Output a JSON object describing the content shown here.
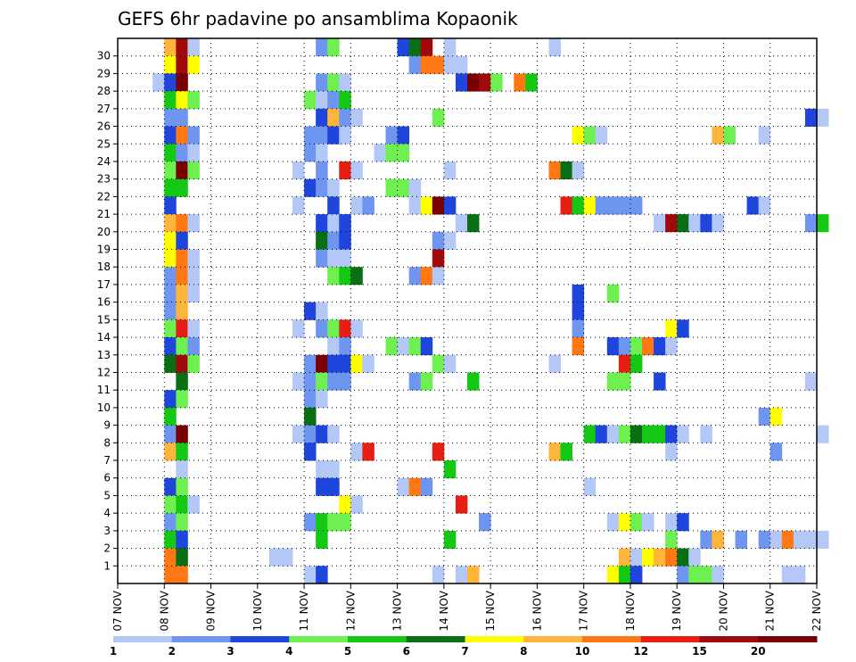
{
  "chart_data": {
    "type": "heatmap",
    "title": "GEFS 6hr padavine po ansamblima Kopaonik",
    "x_ticks": [
      "07 NOV",
      "08 NOV",
      "09 NOV",
      "10 NOV",
      "11 NOV",
      "12 NOV",
      "13 NOV",
      "14 NOV",
      "15 NOV",
      "16 NOV",
      "17 NOV",
      "18 NOV",
      "19 NOV",
      "20 NOV",
      "21 NOV",
      "22 NOV"
    ],
    "y_ticks": [
      "1",
      "2",
      "3",
      "4",
      "5",
      "6",
      "7",
      "8",
      "9",
      "10",
      "11",
      "12",
      "13",
      "14",
      "15",
      "16",
      "17",
      "18",
      "19",
      "20",
      "21",
      "22",
      "23",
      "24",
      "25",
      "26",
      "27",
      "28",
      "29",
      "30"
    ],
    "x_range": [
      "07 NOV",
      "22 NOV"
    ],
    "y_range": [
      0,
      30
    ],
    "step_hours": 6,
    "grid": true,
    "legend": {
      "placement": "bottom",
      "labels": [
        "1",
        "2",
        "3",
        "4",
        "5",
        "6",
        "7",
        "8",
        "10",
        "12",
        "15",
        "20"
      ],
      "colors": [
        "#b4c8f8",
        "#6e96f0",
        "#1e46dc",
        "#6ef050",
        "#14c814",
        "#0a6e14",
        "#ffff00",
        "#ffb43c",
        "#ff7814",
        "#e61e14",
        "#a00a0a",
        "#780000"
      ]
    },
    "cells_note": "Each cell = [member, day_offset_from_07NOV, color_index 0-11]",
    "cells": [
      [
        30,
        1.0,
        7
      ],
      [
        30,
        1.25,
        10
      ],
      [
        30,
        1.5,
        0
      ],
      [
        30,
        4.25,
        1
      ],
      [
        30,
        4.5,
        3
      ],
      [
        30,
        6.0,
        2
      ],
      [
        30,
        6.25,
        5
      ],
      [
        30,
        6.5,
        10
      ],
      [
        30,
        7.0,
        0
      ],
      [
        30,
        9.25,
        0
      ],
      [
        29,
        1.0,
        6
      ],
      [
        29,
        1.25,
        10
      ],
      [
        29,
        1.5,
        6
      ],
      [
        29,
        6.25,
        1
      ],
      [
        29,
        6.5,
        8
      ],
      [
        29,
        6.75,
        8
      ],
      [
        29,
        7.0,
        0
      ],
      [
        29,
        7.25,
        0
      ],
      [
        28,
        0.75,
        0
      ],
      [
        28,
        1.0,
        2
      ],
      [
        28,
        1.25,
        11
      ],
      [
        28,
        4.25,
        1
      ],
      [
        28,
        4.5,
        3
      ],
      [
        28,
        4.75,
        0
      ],
      [
        28,
        7.25,
        2
      ],
      [
        28,
        7.5,
        11
      ],
      [
        28,
        7.75,
        10
      ],
      [
        28,
        8.0,
        3
      ],
      [
        28,
        8.5,
        8
      ],
      [
        28,
        8.75,
        4
      ],
      [
        27,
        1.0,
        4
      ],
      [
        27,
        1.25,
        6
      ],
      [
        27,
        1.5,
        3
      ],
      [
        27,
        4.0,
        3
      ],
      [
        27,
        4.25,
        0
      ],
      [
        27,
        4.5,
        1
      ],
      [
        27,
        4.75,
        4
      ],
      [
        26,
        1.0,
        1
      ],
      [
        26,
        1.25,
        1
      ],
      [
        26,
        4.25,
        2
      ],
      [
        26,
        4.5,
        7
      ],
      [
        26,
        4.75,
        1
      ],
      [
        26,
        5.0,
        0
      ],
      [
        26,
        6.75,
        3
      ],
      [
        26,
        14.75,
        2
      ],
      [
        26,
        15.0,
        0
      ],
      [
        25,
        1.0,
        2
      ],
      [
        25,
        1.25,
        8
      ],
      [
        25,
        1.5,
        1
      ],
      [
        25,
        4.0,
        1
      ],
      [
        25,
        4.25,
        1
      ],
      [
        25,
        4.5,
        2
      ],
      [
        25,
        4.75,
        0
      ],
      [
        25,
        5.75,
        1
      ],
      [
        25,
        6.0,
        2
      ],
      [
        25,
        9.75,
        6
      ],
      [
        25,
        10.0,
        3
      ],
      [
        25,
        10.25,
        0
      ],
      [
        25,
        12.75,
        7
      ],
      [
        25,
        13.0,
        3
      ],
      [
        25,
        13.75,
        0
      ],
      [
        24,
        1.0,
        4
      ],
      [
        24,
        1.25,
        1
      ],
      [
        24,
        1.5,
        0
      ],
      [
        24,
        4.0,
        1
      ],
      [
        24,
        4.25,
        0
      ],
      [
        24,
        5.5,
        0
      ],
      [
        24,
        5.75,
        3
      ],
      [
        24,
        6.0,
        3
      ],
      [
        23,
        1.0,
        3
      ],
      [
        23,
        1.25,
        11
      ],
      [
        23,
        1.5,
        3
      ],
      [
        23,
        3.75,
        0
      ],
      [
        23,
        4.25,
        1
      ],
      [
        23,
        4.75,
        9
      ],
      [
        23,
        5.0,
        0
      ],
      [
        23,
        7.0,
        0
      ],
      [
        23,
        9.25,
        8
      ],
      [
        23,
        9.5,
        5
      ],
      [
        23,
        9.75,
        0
      ],
      [
        22,
        1.0,
        4
      ],
      [
        22,
        1.25,
        4
      ],
      [
        22,
        4.0,
        2
      ],
      [
        22,
        4.25,
        1
      ],
      [
        22,
        4.5,
        0
      ],
      [
        22,
        5.75,
        3
      ],
      [
        22,
        6.0,
        3
      ],
      [
        22,
        6.25,
        0
      ],
      [
        21,
        1.0,
        2
      ],
      [
        21,
        3.75,
        0
      ],
      [
        21,
        4.5,
        2
      ],
      [
        21,
        5.0,
        0
      ],
      [
        21,
        5.25,
        1
      ],
      [
        21,
        6.25,
        0
      ],
      [
        21,
        6.5,
        6
      ],
      [
        21,
        6.75,
        11
      ],
      [
        21,
        7.0,
        2
      ],
      [
        21,
        9.5,
        9
      ],
      [
        21,
        9.75,
        4
      ],
      [
        21,
        10.0,
        6
      ],
      [
        21,
        10.25,
        1
      ],
      [
        21,
        10.5,
        1
      ],
      [
        21,
        10.75,
        1
      ],
      [
        21,
        11.0,
        1
      ],
      [
        21,
        13.5,
        2
      ],
      [
        21,
        13.75,
        0
      ],
      [
        20,
        1.0,
        7
      ],
      [
        20,
        1.25,
        8
      ],
      [
        20,
        1.5,
        0
      ],
      [
        20,
        4.25,
        2
      ],
      [
        20,
        4.5,
        0
      ],
      [
        20,
        4.75,
        2
      ],
      [
        20,
        7.25,
        0
      ],
      [
        20,
        7.5,
        5
      ],
      [
        20,
        11.5,
        0
      ],
      [
        20,
        11.75,
        10
      ],
      [
        20,
        12.0,
        5
      ],
      [
        20,
        12.25,
        0
      ],
      [
        20,
        12.5,
        2
      ],
      [
        20,
        12.75,
        0
      ],
      [
        20,
        14.75,
        1
      ],
      [
        20,
        15.0,
        4
      ],
      [
        19,
        1.0,
        6
      ],
      [
        19,
        1.25,
        2
      ],
      [
        19,
        4.25,
        5
      ],
      [
        19,
        4.5,
        1
      ],
      [
        19,
        4.75,
        2
      ],
      [
        19,
        6.75,
        1
      ],
      [
        19,
        7.0,
        0
      ],
      [
        18,
        1.0,
        6
      ],
      [
        18,
        1.25,
        8
      ],
      [
        18,
        1.5,
        0
      ],
      [
        18,
        4.25,
        1
      ],
      [
        18,
        4.5,
        0
      ],
      [
        18,
        4.75,
        0
      ],
      [
        18,
        6.75,
        10
      ],
      [
        17,
        1.0,
        1
      ],
      [
        17,
        1.25,
        8
      ],
      [
        17,
        1.5,
        0
      ],
      [
        17,
        4.5,
        3
      ],
      [
        17,
        4.75,
        4
      ],
      [
        17,
        5.0,
        5
      ],
      [
        17,
        6.25,
        1
      ],
      [
        17,
        6.5,
        8
      ],
      [
        17,
        6.75,
        0
      ],
      [
        16,
        1.0,
        1
      ],
      [
        16,
        1.25,
        7
      ],
      [
        16,
        1.5,
        0
      ],
      [
        16,
        9.75,
        2
      ],
      [
        16,
        10.5,
        3
      ],
      [
        15,
        1.0,
        1
      ],
      [
        15,
        1.25,
        7
      ],
      [
        15,
        4.0,
        2
      ],
      [
        15,
        4.25,
        0
      ],
      [
        15,
        9.75,
        2
      ],
      [
        14,
        1.0,
        3
      ],
      [
        14,
        1.25,
        9
      ],
      [
        14,
        1.5,
        0
      ],
      [
        14,
        3.75,
        0
      ],
      [
        14,
        4.25,
        1
      ],
      [
        14,
        4.5,
        3
      ],
      [
        14,
        4.75,
        9
      ],
      [
        14,
        5.0,
        0
      ],
      [
        14,
        9.75,
        1
      ],
      [
        14,
        11.75,
        6
      ],
      [
        14,
        12.0,
        2
      ],
      [
        13,
        1.0,
        2
      ],
      [
        13,
        1.25,
        3
      ],
      [
        13,
        1.5,
        1
      ],
      [
        13,
        4.5,
        0
      ],
      [
        13,
        4.75,
        1
      ],
      [
        13,
        5.75,
        3
      ],
      [
        13,
        6.0,
        0
      ],
      [
        13,
        6.25,
        3
      ],
      [
        13,
        6.5,
        2
      ],
      [
        13,
        9.75,
        8
      ],
      [
        13,
        10.5,
        2
      ],
      [
        13,
        10.75,
        1
      ],
      [
        13,
        11.0,
        3
      ],
      [
        13,
        11.25,
        8
      ],
      [
        13,
        11.5,
        2
      ],
      [
        13,
        11.75,
        0
      ],
      [
        12,
        1.0,
        5
      ],
      [
        12,
        1.25,
        10
      ],
      [
        12,
        1.5,
        3
      ],
      [
        12,
        4.0,
        1
      ],
      [
        12,
        4.25,
        11
      ],
      [
        12,
        4.5,
        2
      ],
      [
        12,
        4.75,
        2
      ],
      [
        12,
        5.0,
        6
      ],
      [
        12,
        5.25,
        0
      ],
      [
        12,
        6.75,
        3
      ],
      [
        12,
        7.0,
        0
      ],
      [
        12,
        9.25,
        0
      ],
      [
        12,
        10.75,
        9
      ],
      [
        12,
        11.0,
        4
      ],
      [
        11,
        1.25,
        5
      ],
      [
        11,
        3.75,
        0
      ],
      [
        11,
        4.0,
        1
      ],
      [
        11,
        4.25,
        3
      ],
      [
        11,
        4.5,
        1
      ],
      [
        11,
        4.75,
        1
      ],
      [
        11,
        6.25,
        1
      ],
      [
        11,
        6.5,
        3
      ],
      [
        11,
        7.5,
        4
      ],
      [
        11,
        10.5,
        3
      ],
      [
        11,
        10.75,
        3
      ],
      [
        11,
        11.5,
        2
      ],
      [
        11,
        14.75,
        0
      ],
      [
        10,
        1.0,
        2
      ],
      [
        10,
        1.25,
        3
      ],
      [
        10,
        4.0,
        1
      ],
      [
        10,
        4.25,
        0
      ],
      [
        9,
        1.0,
        4
      ],
      [
        9,
        4.0,
        5
      ],
      [
        9,
        13.75,
        1
      ],
      [
        9,
        14.0,
        6
      ],
      [
        8,
        1.0,
        1
      ],
      [
        8,
        1.25,
        11
      ],
      [
        8,
        3.75,
        0
      ],
      [
        8,
        4.0,
        1
      ],
      [
        8,
        4.25,
        2
      ],
      [
        8,
        4.5,
        0
      ],
      [
        8,
        10.0,
        4
      ],
      [
        8,
        10.25,
        2
      ],
      [
        8,
        10.5,
        0
      ],
      [
        8,
        10.75,
        3
      ],
      [
        8,
        11.0,
        5
      ],
      [
        8,
        11.25,
        4
      ],
      [
        8,
        11.5,
        4
      ],
      [
        8,
        11.75,
        2
      ],
      [
        8,
        12.0,
        0
      ],
      [
        8,
        12.5,
        0
      ],
      [
        8,
        15.0,
        0
      ],
      [
        7,
        1.0,
        7
      ],
      [
        7,
        1.25,
        4
      ],
      [
        7,
        4.0,
        2
      ],
      [
        7,
        5.0,
        0
      ],
      [
        7,
        5.25,
        9
      ],
      [
        7,
        6.75,
        9
      ],
      [
        7,
        9.25,
        7
      ],
      [
        7,
        9.5,
        4
      ],
      [
        7,
        11.75,
        0
      ],
      [
        7,
        14.0,
        1
      ],
      [
        6,
        1.25,
        0
      ],
      [
        6,
        4.25,
        0
      ],
      [
        6,
        4.5,
        0
      ],
      [
        6,
        7.0,
        4
      ],
      [
        5,
        1.0,
        2
      ],
      [
        5,
        1.25,
        3
      ],
      [
        5,
        4.25,
        2
      ],
      [
        5,
        4.5,
        2
      ],
      [
        5,
        6.0,
        0
      ],
      [
        5,
        6.25,
        8
      ],
      [
        5,
        6.5,
        1
      ],
      [
        5,
        10.0,
        0
      ],
      [
        4,
        1.0,
        3
      ],
      [
        4,
        1.25,
        4
      ],
      [
        4,
        1.5,
        0
      ],
      [
        4,
        4.75,
        6
      ],
      [
        4,
        5.0,
        0
      ],
      [
        4,
        7.25,
        9
      ],
      [
        3,
        1.0,
        1
      ],
      [
        3,
        1.25,
        3
      ],
      [
        3,
        4.0,
        1
      ],
      [
        3,
        4.25,
        4
      ],
      [
        3,
        4.5,
        3
      ],
      [
        3,
        4.75,
        3
      ],
      [
        3,
        7.75,
        1
      ],
      [
        3,
        10.5,
        0
      ],
      [
        3,
        10.75,
        6
      ],
      [
        3,
        11.0,
        3
      ],
      [
        3,
        11.25,
        0
      ],
      [
        3,
        11.75,
        0
      ],
      [
        3,
        12.0,
        2
      ],
      [
        2,
        1.0,
        4
      ],
      [
        2,
        1.25,
        2
      ],
      [
        2,
        4.25,
        4
      ],
      [
        2,
        7.0,
        4
      ],
      [
        2,
        11.75,
        3
      ],
      [
        2,
        12.5,
        1
      ],
      [
        2,
        12.75,
        7
      ],
      [
        2,
        13.25,
        1
      ],
      [
        2,
        13.75,
        1
      ],
      [
        2,
        14.0,
        0
      ],
      [
        2,
        14.25,
        8
      ],
      [
        2,
        14.5,
        0
      ],
      [
        2,
        14.75,
        0
      ],
      [
        2,
        15.0,
        0
      ],
      [
        1,
        1.0,
        8
      ],
      [
        1,
        1.25,
        5
      ],
      [
        1,
        3.25,
        0
      ],
      [
        1,
        3.5,
        0
      ],
      [
        1,
        10.75,
        7
      ],
      [
        1,
        11.0,
        0
      ],
      [
        1,
        11.25,
        6
      ],
      [
        1,
        11.5,
        7
      ],
      [
        1,
        11.75,
        8
      ],
      [
        1,
        12.0,
        5
      ],
      [
        1,
        12.25,
        0
      ],
      [
        0,
        1.0,
        8
      ],
      [
        0,
        1.25,
        8
      ],
      [
        0,
        4.0,
        0
      ],
      [
        0,
        4.25,
        2
      ],
      [
        0,
        6.75,
        0
      ],
      [
        0,
        7.25,
        0
      ],
      [
        0,
        7.5,
        7
      ],
      [
        0,
        10.5,
        6
      ],
      [
        0,
        10.75,
        4
      ],
      [
        0,
        11.0,
        2
      ],
      [
        0,
        12.0,
        1
      ],
      [
        0,
        12.25,
        3
      ],
      [
        0,
        12.5,
        3
      ],
      [
        0,
        12.75,
        0
      ],
      [
        0,
        14.25,
        0
      ],
      [
        0,
        14.5,
        0
      ]
    ]
  }
}
